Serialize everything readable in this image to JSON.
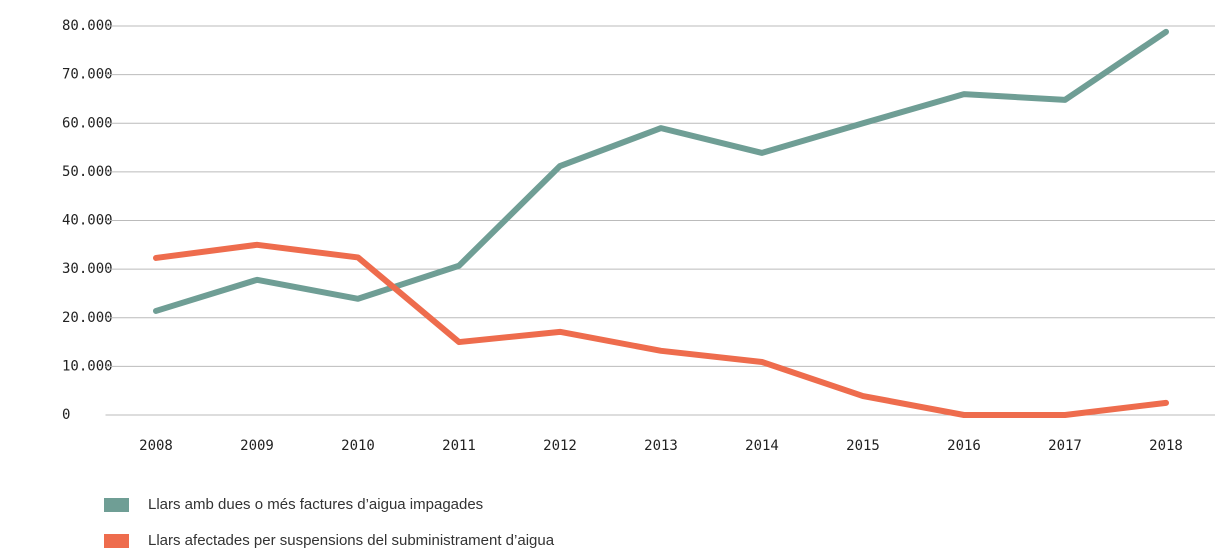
{
  "chart_data": {
    "type": "line",
    "categories": [
      "2008",
      "2009",
      "2010",
      "2011",
      "2012",
      "2013",
      "2014",
      "2015",
      "2016",
      "2017",
      "2018"
    ],
    "series": [
      {
        "name": "Llars amb dues o més factures d’aigua impagades",
        "color": "#6f9e95",
        "values": [
          21400,
          27800,
          23900,
          30700,
          51200,
          59000,
          53900,
          60000,
          66000,
          64800,
          78800
        ]
      },
      {
        "name": "Llars afectades per suspensions del subministrament d’aigua",
        "color": "#ee6c4d",
        "values": [
          32300,
          35000,
          32400,
          15000,
          17100,
          13200,
          10900,
          3900,
          0,
          0,
          2500
        ]
      }
    ],
    "ylim": [
      0,
      80000
    ],
    "yticks": [
      0,
      {
        "value": 10000,
        "label": "10.000"
      },
      {
        "value": 20000,
        "label": "20.000"
      },
      {
        "value": 30000,
        "label": "30.000"
      },
      {
        "value": 40000,
        "label": "40.000"
      },
      {
        "value": 50000,
        "label": "50.000"
      },
      {
        "value": 60000,
        "label": "60.000"
      },
      {
        "value": 70000,
        "label": "70.000"
      },
      {
        "value": 80000,
        "label": "80.000"
      }
    ],
    "grid": true,
    "legend": "bottom"
  }
}
